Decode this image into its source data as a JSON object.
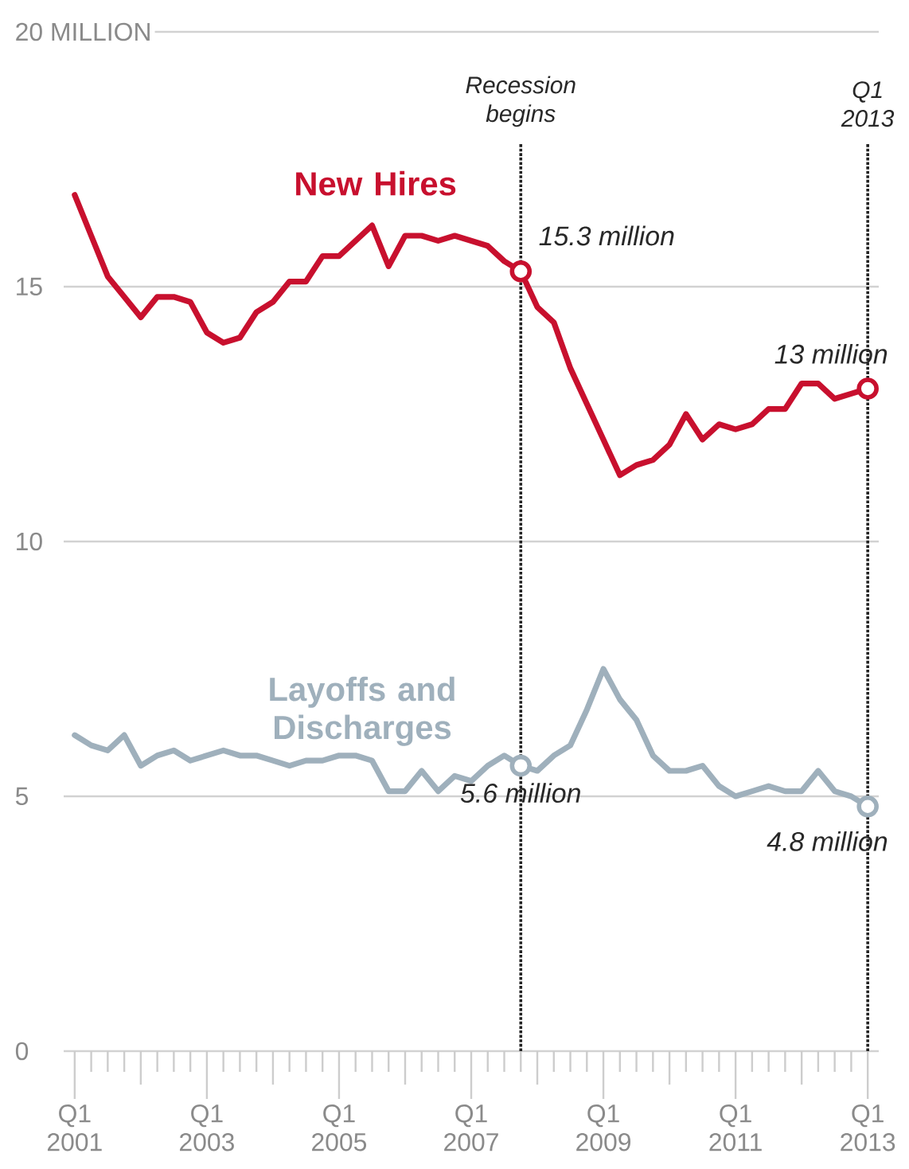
{
  "chart_data": {
    "type": "line",
    "x": [
      "2001-01",
      "2001-04",
      "2001-07",
      "2001-10",
      "2002-01",
      "2002-04",
      "2002-07",
      "2002-10",
      "2003-01",
      "2003-04",
      "2003-07",
      "2003-10",
      "2004-01",
      "2004-04",
      "2004-07",
      "2004-10",
      "2005-01",
      "2005-04",
      "2005-07",
      "2005-10",
      "2006-01",
      "2006-04",
      "2006-07",
      "2006-10",
      "2007-01",
      "2007-04",
      "2007-07",
      "2007-10",
      "2008-01",
      "2008-04",
      "2008-07",
      "2008-10",
      "2009-01",
      "2009-04",
      "2009-07",
      "2009-10",
      "2010-01",
      "2010-04",
      "2010-07",
      "2010-10",
      "2011-01",
      "2011-04",
      "2011-07",
      "2011-10",
      "2012-01",
      "2012-04",
      "2012-07",
      "2012-10",
      "2013-01"
    ],
    "series": [
      {
        "name": "New Hires",
        "color": "#c8102e",
        "values": [
          16.8,
          16.0,
          15.2,
          14.8,
          14.4,
          14.8,
          14.8,
          14.7,
          14.1,
          13.9,
          14.0,
          14.5,
          14.7,
          15.1,
          15.1,
          15.6,
          15.6,
          15.9,
          16.2,
          15.4,
          16.0,
          16.0,
          15.9,
          16.0,
          15.9,
          15.8,
          15.5,
          15.3,
          14.6,
          14.3,
          13.4,
          12.7,
          12.0,
          11.3,
          11.5,
          11.6,
          11.9,
          12.5,
          12.0,
          12.3,
          12.2,
          12.3,
          12.6,
          12.6,
          13.1,
          13.1,
          12.8,
          12.9,
          13.0
        ]
      },
      {
        "name": "Layoffs and Discharges",
        "color": "#9fb0bc",
        "values": [
          6.2,
          6.0,
          5.9,
          6.2,
          5.6,
          5.8,
          5.9,
          5.7,
          5.8,
          5.9,
          5.8,
          5.8,
          5.7,
          5.6,
          5.7,
          5.7,
          5.8,
          5.8,
          5.7,
          5.1,
          5.1,
          5.5,
          5.1,
          5.4,
          5.3,
          5.6,
          5.8,
          5.6,
          5.5,
          5.8,
          6.0,
          6.7,
          7.5,
          6.9,
          6.5,
          5.8,
          5.5,
          5.5,
          5.6,
          5.2,
          5.0,
          5.1,
          5.2,
          5.1,
          5.1,
          5.5,
          5.1,
          5.0,
          4.8
        ]
      }
    ],
    "xlim": [
      "2000-11",
      "2013-03"
    ],
    "ylim": [
      0,
      20
    ],
    "xticks": [
      {
        "value": "2001-01",
        "label": "Q1 2001"
      },
      {
        "value": "2003-01",
        "label": "Q1 2003"
      },
      {
        "value": "2005-01",
        "label": "Q1 2005"
      },
      {
        "value": "2007-01",
        "label": "Q1 2007"
      },
      {
        "value": "2009-01",
        "label": "Q1 2009"
      },
      {
        "value": "2011-01",
        "label": "Q1 2011"
      },
      {
        "value": "2013-01",
        "label": "Q1 2013"
      }
    ],
    "yticks": [
      0,
      5,
      10,
      15,
      {
        "value": 20,
        "label": "20 MILLION"
      }
    ],
    "grid": "y",
    "ref_lines": [
      {
        "axis": "x",
        "value": "2007-10",
        "label": "Recession begins",
        "color": "#222222",
        "line_style": "dotted"
      },
      {
        "axis": "x",
        "value": "2013-01",
        "label": "Q1 2013",
        "color": "#222222",
        "line_style": "dotted"
      }
    ],
    "annotations": [
      {
        "text": "15.3 million",
        "x": "2007-10",
        "y": 15.3
      },
      {
        "text": "13 million",
        "x": "2013-01",
        "y": 13.0
      },
      {
        "text": "5.6 million",
        "x": "2007-10",
        "y": 5.6
      },
      {
        "text": "4.8 million",
        "x": "2013-01",
        "y": 4.8
      }
    ]
  }
}
